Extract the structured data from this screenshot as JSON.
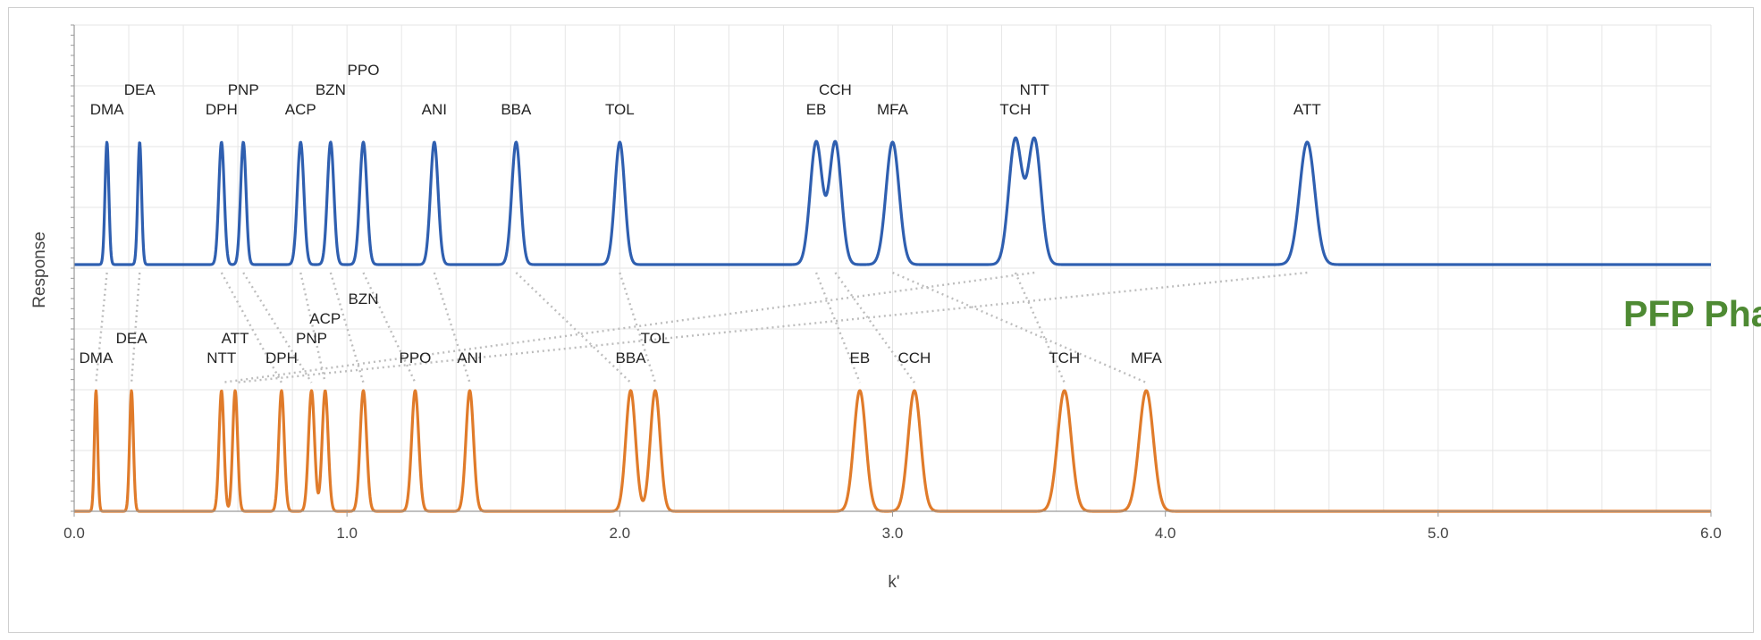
{
  "side_label": "PFP Phases",
  "colors": {
    "top": "#2f5fb0",
    "bottom": "#e07b2a",
    "link": "#bdbdbd",
    "grid": "#e6e6e6",
    "side_label": "#4e8a33"
  },
  "chart_data": {
    "type": "line",
    "xlabel": "k'",
    "ylabel": "Response",
    "xlim": [
      0,
      6
    ],
    "xticks": [
      "0.0",
      "1.0",
      "2.0",
      "3.0",
      "4.0",
      "5.0",
      "6.0"
    ],
    "grid": true,
    "series": [
      {
        "key": "top",
        "color": "#2f5fb0",
        "peaks": [
          {
            "name": "DMA",
            "k": 0.12,
            "height": 1.0,
            "width": 0.007,
            "label_level": 0
          },
          {
            "name": "DEA",
            "k": 0.24,
            "height": 1.0,
            "width": 0.007,
            "label_level": 1
          },
          {
            "name": "DPH",
            "k": 0.54,
            "height": 1.0,
            "width": 0.01,
            "label_level": 0
          },
          {
            "name": "PNP",
            "k": 0.62,
            "height": 1.0,
            "width": 0.01,
            "label_level": 1
          },
          {
            "name": "ACP",
            "k": 0.83,
            "height": 1.0,
            "width": 0.012,
            "label_level": 0
          },
          {
            "name": "BZN",
            "k": 0.94,
            "height": 1.0,
            "width": 0.012,
            "label_level": 1
          },
          {
            "name": "PPO",
            "k": 1.06,
            "height": 1.0,
            "width": 0.013,
            "label_level": 2
          },
          {
            "name": "ANI",
            "k": 1.32,
            "height": 1.0,
            "width": 0.014,
            "label_level": 0
          },
          {
            "name": "BBA",
            "k": 1.62,
            "height": 1.0,
            "width": 0.016,
            "label_level": 0
          },
          {
            "name": "TOL",
            "k": 2.0,
            "height": 1.0,
            "width": 0.018,
            "label_level": 0
          },
          {
            "name": "EB",
            "k": 2.72,
            "height": 1.0,
            "width": 0.022,
            "label_level": 0
          },
          {
            "name": "CCH",
            "k": 2.79,
            "height": 1.0,
            "width": 0.022,
            "label_level": 1
          },
          {
            "name": "MFA",
            "k": 3.0,
            "height": 1.0,
            "width": 0.024,
            "label_level": 0
          },
          {
            "name": "TCH",
            "k": 3.45,
            "height": 1.02,
            "width": 0.024,
            "label_level": 0
          },
          {
            "name": "NTT",
            "k": 3.52,
            "height": 1.02,
            "width": 0.024,
            "label_level": 1
          },
          {
            "name": "ATT",
            "k": 4.52,
            "height": 1.0,
            "width": 0.028,
            "label_level": 0
          }
        ]
      },
      {
        "key": "bottom",
        "color": "#e07b2a",
        "peaks": [
          {
            "name": "DMA",
            "k": 0.08,
            "height": 1.0,
            "width": 0.006,
            "label_level": 0
          },
          {
            "name": "DEA",
            "k": 0.21,
            "height": 1.0,
            "width": 0.007,
            "label_level": 1
          },
          {
            "name": "NTT",
            "k": 0.54,
            "height": 1.0,
            "width": 0.009,
            "label_level": 0
          },
          {
            "name": "ATT",
            "k": 0.59,
            "height": 1.0,
            "width": 0.009,
            "label_level": 1
          },
          {
            "name": "DPH",
            "k": 0.76,
            "height": 1.0,
            "width": 0.01,
            "label_level": 0
          },
          {
            "name": "PNP",
            "k": 0.87,
            "height": 1.0,
            "width": 0.011,
            "label_level": 1
          },
          {
            "name": "ACP",
            "k": 0.92,
            "height": 1.0,
            "width": 0.011,
            "label_level": 2
          },
          {
            "name": "BZN",
            "k": 1.06,
            "height": 1.0,
            "width": 0.012,
            "label_level": 3
          },
          {
            "name": "PPO",
            "k": 1.25,
            "height": 1.0,
            "width": 0.013,
            "label_level": 0
          },
          {
            "name": "ANI",
            "k": 1.45,
            "height": 1.0,
            "width": 0.014,
            "label_level": 0
          },
          {
            "name": "BBA",
            "k": 2.04,
            "height": 1.0,
            "width": 0.018,
            "label_level": 0
          },
          {
            "name": "TOL",
            "k": 2.13,
            "height": 1.0,
            "width": 0.018,
            "label_level": 1
          },
          {
            "name": "EB",
            "k": 2.88,
            "height": 1.0,
            "width": 0.022,
            "label_level": 0
          },
          {
            "name": "CCH",
            "k": 3.08,
            "height": 1.0,
            "width": 0.023,
            "label_level": 0
          },
          {
            "name": "TCH",
            "k": 3.63,
            "height": 1.0,
            "width": 0.025,
            "label_level": 0
          },
          {
            "name": "MFA",
            "k": 3.93,
            "height": 1.0,
            "width": 0.026,
            "label_level": 0
          }
        ]
      }
    ]
  }
}
